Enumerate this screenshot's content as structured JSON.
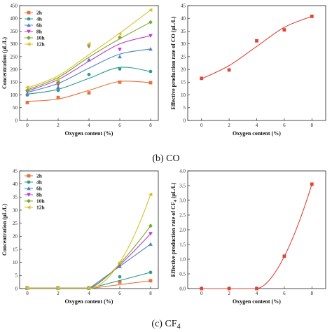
{
  "captions": {
    "top": "(b) CO",
    "bottom_prefix": "(c) CF",
    "bottom_sub": "4"
  },
  "colors": {
    "2h": "#e8703a",
    "4h": "#2e9c8a",
    "6h": "#4f83c4",
    "8h": "#c03ad0",
    "10h": "#79a82c",
    "12h": "#d8c22a",
    "rate": "#e0443a"
  },
  "chart_data": [
    {
      "type": "scatter",
      "panel": "co-concentration",
      "xlabel": "Oxygen content (%)",
      "ylabel": "Concentration (μL/L)",
      "xlim": [
        -0.5,
        8.5
      ],
      "ylim": [
        0,
        450
      ],
      "xticks": [
        0,
        2,
        4,
        6,
        8
      ],
      "yticks": [
        0,
        50,
        100,
        150,
        200,
        250,
        300,
        350,
        400,
        450
      ],
      "x": [
        0,
        2,
        4,
        6,
        8
      ],
      "legend_position": "top-left",
      "series": [
        {
          "name": "2h",
          "values": [
            70,
            90,
            108,
            150,
            148
          ]
        },
        {
          "name": "4h",
          "values": [
            100,
            118,
            180,
            202,
            192
          ]
        },
        {
          "name": "6h",
          "values": [
            105,
            130,
            238,
            250,
            280
          ]
        },
        {
          "name": "8h",
          "values": [
            112,
            140,
            290,
            278,
            332
          ]
        },
        {
          "name": "10h",
          "values": [
            118,
            150,
            295,
            325,
            385
          ]
        },
        {
          "name": "12h",
          "values": [
            130,
            160,
            300,
            340,
            433
          ]
        }
      ],
      "fits": [
        [
          75,
          84,
          118,
          153,
          148
        ],
        [
          103,
          122,
          165,
          208,
          192
        ],
        [
          110,
          145,
          205,
          260,
          280
        ],
        [
          115,
          160,
          232,
          300,
          332
        ],
        [
          120,
          168,
          248,
          320,
          385
        ],
        [
          127,
          175,
          258,
          342,
          433
        ]
      ]
    },
    {
      "type": "scatter",
      "panel": "co-rate",
      "xlabel": "Oxygen content (%)",
      "ylabel": "Effective production rate of CO (μL/L)",
      "xlim": [
        -1,
        9
      ],
      "ylim": [
        0,
        45
      ],
      "xticks": [
        0,
        2,
        4,
        6,
        8
      ],
      "yticks": [
        0,
        5,
        10,
        15,
        20,
        25,
        30,
        35,
        40,
        45
      ],
      "x": [
        0,
        2,
        4,
        6,
        8
      ],
      "values": [
        16.5,
        19.8,
        31.2,
        35.5,
        40.8
      ],
      "fit": [
        16.3,
        21.5,
        29.0,
        36.5,
        40.8
      ]
    },
    {
      "type": "scatter",
      "panel": "cf4-concentration",
      "xlabel": "Oxygen content (%)",
      "ylabel": "Concentration (μL/L)",
      "xlim": [
        -0.5,
        8.5
      ],
      "ylim": [
        0,
        45
      ],
      "xticks": [
        0,
        2,
        4,
        6,
        8
      ],
      "yticks": [
        0,
        5,
        10,
        15,
        20,
        25,
        30,
        35,
        40,
        45
      ],
      "x": [
        0,
        2,
        4,
        6,
        8
      ],
      "legend_position": "top-left",
      "series": [
        {
          "name": "2h",
          "values": [
            0.2,
            0.2,
            0.2,
            2.5,
            3.0
          ]
        },
        {
          "name": "4h",
          "values": [
            0.2,
            0.2,
            0.2,
            4.5,
            6.2
          ]
        },
        {
          "name": "6h",
          "values": [
            0.2,
            0.2,
            0.2,
            8.5,
            17.0
          ]
        },
        {
          "name": "8h",
          "values": [
            0.2,
            0.2,
            0.2,
            9.0,
            21.0
          ]
        },
        {
          "name": "10h",
          "values": [
            0.2,
            0.2,
            0.2,
            9.5,
            24.0
          ]
        },
        {
          "name": "12h",
          "values": [
            0.2,
            0.2,
            0.2,
            10.0,
            36.0
          ]
        }
      ]
    },
    {
      "type": "scatter",
      "panel": "cf4-rate",
      "xlabel": "Oxygen content (%)",
      "ylabel_prefix": "Effective production rate of CF",
      "ylabel_sub": "4",
      "ylabel_suffix": " (μL/L)",
      "xlim": [
        -1,
        9
      ],
      "ylim": [
        0,
        4.0
      ],
      "xticks": [
        0,
        2,
        4,
        6,
        8
      ],
      "yticks": [
        0.0,
        0.5,
        1.0,
        1.5,
        2.0,
        2.5,
        3.0,
        3.5,
        4.0
      ],
      "x": [
        0,
        2,
        4,
        6,
        8
      ],
      "values": [
        0.0,
        0.0,
        0.0,
        1.1,
        3.55
      ]
    }
  ]
}
